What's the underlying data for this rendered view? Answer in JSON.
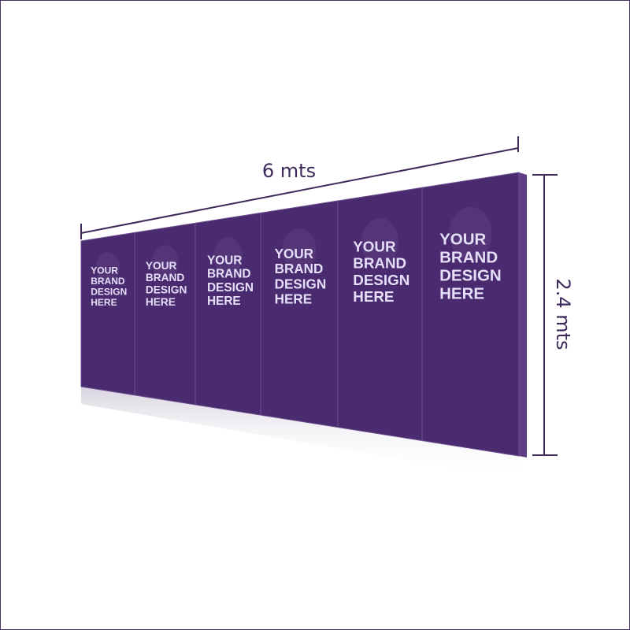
{
  "dimensions": {
    "width_label": "6 mts",
    "height_label": "2.4 mts"
  },
  "panels": [
    {
      "lines": [
        "YOUR",
        "BRAND",
        "DESIGN",
        "HERE"
      ]
    },
    {
      "lines": [
        "YOUR",
        "BRAND",
        "DESIGN",
        "HERE"
      ]
    },
    {
      "lines": [
        "YOUR",
        "BRAND",
        "DESIGN",
        "HERE"
      ]
    },
    {
      "lines": [
        "YOUR",
        "BRAND",
        "DESIGN",
        "HERE"
      ]
    },
    {
      "lines": [
        "YOUR",
        "BRAND",
        "DESIGN",
        "HERE"
      ]
    },
    {
      "lines": [
        "YOUR",
        "BRAND",
        "DESIGN",
        "HERE"
      ]
    }
  ],
  "colors": {
    "panel": "#4b2b6f",
    "panel_edge": "#5e3f85",
    "text": "#e4def8",
    "dimension_line": "#3d2a5a"
  }
}
